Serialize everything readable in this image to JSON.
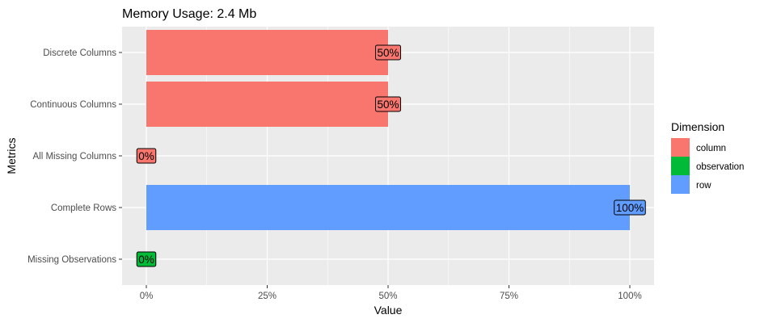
{
  "chart_data": {
    "type": "bar",
    "orientation": "horizontal",
    "title": "Memory Usage: 2.4 Mb",
    "xlabel": "Value",
    "ylabel": "Metrics",
    "xlim": [
      0,
      1
    ],
    "x_ticks": [
      0,
      0.25,
      0.5,
      0.75,
      1
    ],
    "x_tick_labels": [
      "0%",
      "25%",
      "50%",
      "75%",
      "100%"
    ],
    "grid": true,
    "legend_position": "right",
    "legend_title": "Dimension",
    "legend": [
      {
        "name": "column",
        "color": "#F8766D"
      },
      {
        "name": "observation",
        "color": "#00BA38"
      },
      {
        "name": "row",
        "color": "#619CFF"
      }
    ],
    "bars": [
      {
        "category": "Discrete Columns",
        "value": 0.5,
        "label": "50%",
        "dimension": "column"
      },
      {
        "category": "Continuous Columns",
        "value": 0.5,
        "label": "50%",
        "dimension": "column"
      },
      {
        "category": "All Missing Columns",
        "value": 0,
        "label": "0%",
        "dimension": "column"
      },
      {
        "category": "Complete Rows",
        "value": 1,
        "label": "100%",
        "dimension": "row"
      },
      {
        "category": "Missing Observations",
        "value": 0,
        "label": "0%",
        "dimension": "observation"
      }
    ]
  }
}
